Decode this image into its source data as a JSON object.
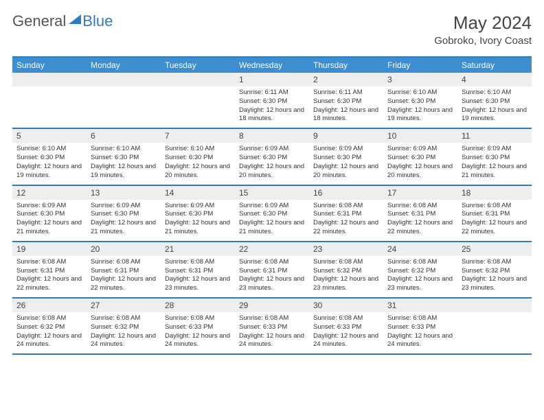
{
  "brand": {
    "word1": "General",
    "word2": "Blue"
  },
  "title": "May 2024",
  "subtitle": "Gobroko, Ivory Coast",
  "header_bg": "#3d8dd1",
  "border_color": "#2f7bbf",
  "daynum_bg": "#eceef0",
  "text_color": "#333333",
  "daynames": [
    "Sunday",
    "Monday",
    "Tuesday",
    "Wednesday",
    "Thursday",
    "Friday",
    "Saturday"
  ],
  "weeks": [
    [
      null,
      null,
      null,
      {
        "n": "1",
        "sr": "6:11 AM",
        "ss": "6:30 PM",
        "dl": "12 hours and 18 minutes."
      },
      {
        "n": "2",
        "sr": "6:11 AM",
        "ss": "6:30 PM",
        "dl": "12 hours and 18 minutes."
      },
      {
        "n": "3",
        "sr": "6:10 AM",
        "ss": "6:30 PM",
        "dl": "12 hours and 19 minutes."
      },
      {
        "n": "4",
        "sr": "6:10 AM",
        "ss": "6:30 PM",
        "dl": "12 hours and 19 minutes."
      }
    ],
    [
      {
        "n": "5",
        "sr": "6:10 AM",
        "ss": "6:30 PM",
        "dl": "12 hours and 19 minutes."
      },
      {
        "n": "6",
        "sr": "6:10 AM",
        "ss": "6:30 PM",
        "dl": "12 hours and 19 minutes."
      },
      {
        "n": "7",
        "sr": "6:10 AM",
        "ss": "6:30 PM",
        "dl": "12 hours and 20 minutes."
      },
      {
        "n": "8",
        "sr": "6:09 AM",
        "ss": "6:30 PM",
        "dl": "12 hours and 20 minutes."
      },
      {
        "n": "9",
        "sr": "6:09 AM",
        "ss": "6:30 PM",
        "dl": "12 hours and 20 minutes."
      },
      {
        "n": "10",
        "sr": "6:09 AM",
        "ss": "6:30 PM",
        "dl": "12 hours and 20 minutes."
      },
      {
        "n": "11",
        "sr": "6:09 AM",
        "ss": "6:30 PM",
        "dl": "12 hours and 21 minutes."
      }
    ],
    [
      {
        "n": "12",
        "sr": "6:09 AM",
        "ss": "6:30 PM",
        "dl": "12 hours and 21 minutes."
      },
      {
        "n": "13",
        "sr": "6:09 AM",
        "ss": "6:30 PM",
        "dl": "12 hours and 21 minutes."
      },
      {
        "n": "14",
        "sr": "6:09 AM",
        "ss": "6:30 PM",
        "dl": "12 hours and 21 minutes."
      },
      {
        "n": "15",
        "sr": "6:09 AM",
        "ss": "6:30 PM",
        "dl": "12 hours and 21 minutes."
      },
      {
        "n": "16",
        "sr": "6:08 AM",
        "ss": "6:31 PM",
        "dl": "12 hours and 22 minutes."
      },
      {
        "n": "17",
        "sr": "6:08 AM",
        "ss": "6:31 PM",
        "dl": "12 hours and 22 minutes."
      },
      {
        "n": "18",
        "sr": "6:08 AM",
        "ss": "6:31 PM",
        "dl": "12 hours and 22 minutes."
      }
    ],
    [
      {
        "n": "19",
        "sr": "6:08 AM",
        "ss": "6:31 PM",
        "dl": "12 hours and 22 minutes."
      },
      {
        "n": "20",
        "sr": "6:08 AM",
        "ss": "6:31 PM",
        "dl": "12 hours and 22 minutes."
      },
      {
        "n": "21",
        "sr": "6:08 AM",
        "ss": "6:31 PM",
        "dl": "12 hours and 23 minutes."
      },
      {
        "n": "22",
        "sr": "6:08 AM",
        "ss": "6:31 PM",
        "dl": "12 hours and 23 minutes."
      },
      {
        "n": "23",
        "sr": "6:08 AM",
        "ss": "6:32 PM",
        "dl": "12 hours and 23 minutes."
      },
      {
        "n": "24",
        "sr": "6:08 AM",
        "ss": "6:32 PM",
        "dl": "12 hours and 23 minutes."
      },
      {
        "n": "25",
        "sr": "6:08 AM",
        "ss": "6:32 PM",
        "dl": "12 hours and 23 minutes."
      }
    ],
    [
      {
        "n": "26",
        "sr": "6:08 AM",
        "ss": "6:32 PM",
        "dl": "12 hours and 24 minutes."
      },
      {
        "n": "27",
        "sr": "6:08 AM",
        "ss": "6:32 PM",
        "dl": "12 hours and 24 minutes."
      },
      {
        "n": "28",
        "sr": "6:08 AM",
        "ss": "6:33 PM",
        "dl": "12 hours and 24 minutes."
      },
      {
        "n": "29",
        "sr": "6:08 AM",
        "ss": "6:33 PM",
        "dl": "12 hours and 24 minutes."
      },
      {
        "n": "30",
        "sr": "6:08 AM",
        "ss": "6:33 PM",
        "dl": "12 hours and 24 minutes."
      },
      {
        "n": "31",
        "sr": "6:08 AM",
        "ss": "6:33 PM",
        "dl": "12 hours and 24 minutes."
      },
      null
    ]
  ],
  "labels": {
    "sunrise": "Sunrise:",
    "sunset": "Sunset:",
    "daylight": "Daylight:"
  }
}
